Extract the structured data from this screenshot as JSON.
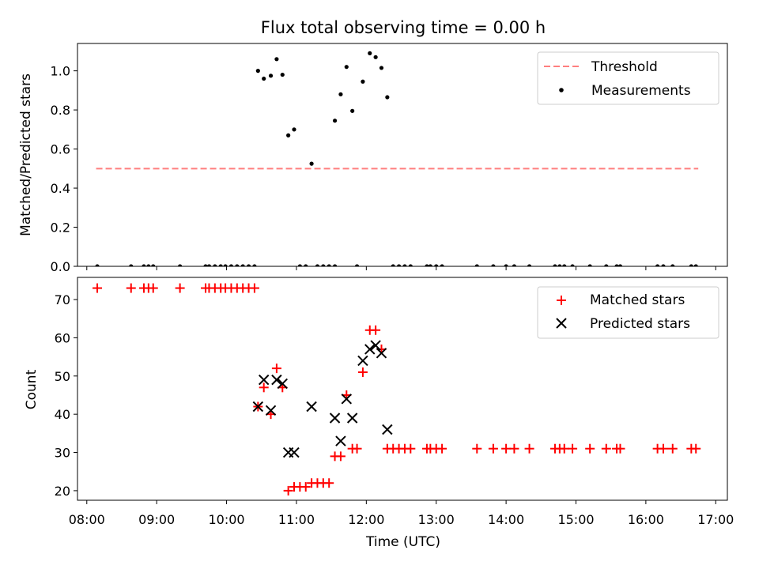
{
  "chart_data": [
    {
      "type": "scatter",
      "title": "Flux total observing time = 0.00 h",
      "xlabel": "",
      "ylabel": "Matched/Predicted stars",
      "ylim": [
        0,
        1.14
      ],
      "yticks": [
        "0.0",
        "0.2",
        "0.4",
        "0.6",
        "0.8",
        "1.0"
      ],
      "xlim": [
        "07:52",
        "17:10"
      ],
      "legend_position": "top-right",
      "series": [
        {
          "name": "Threshold",
          "style": "dashed-line",
          "color": "#ff7f7f",
          "points": [
            {
              "x": "08:08",
              "y": 0.5
            },
            {
              "x": "16:45",
              "y": 0.5
            }
          ]
        },
        {
          "name": "Measurements",
          "style": "dot",
          "color": "#000000",
          "points": [
            {
              "x": "08:09",
              "y": 0
            },
            {
              "x": "08:38",
              "y": 0
            },
            {
              "x": "08:49",
              "y": 0
            },
            {
              "x": "08:53",
              "y": 0
            },
            {
              "x": "08:57",
              "y": 0
            },
            {
              "x": "09:20",
              "y": 0
            },
            {
              "x": "09:42",
              "y": 0
            },
            {
              "x": "09:45",
              "y": 0
            },
            {
              "x": "09:50",
              "y": 0
            },
            {
              "x": "09:55",
              "y": 0
            },
            {
              "x": "09:59",
              "y": 0
            },
            {
              "x": "10:04",
              "y": 0
            },
            {
              "x": "10:09",
              "y": 0
            },
            {
              "x": "10:14",
              "y": 0
            },
            {
              "x": "10:19",
              "y": 0
            },
            {
              "x": "10:24",
              "y": 0
            },
            {
              "x": "10:27",
              "y": 1.0
            },
            {
              "x": "10:32",
              "y": 0.96
            },
            {
              "x": "10:38",
              "y": 0.975
            },
            {
              "x": "10:43",
              "y": 1.06
            },
            {
              "x": "10:48",
              "y": 0.98
            },
            {
              "x": "10:53",
              "y": 0.67
            },
            {
              "x": "10:58",
              "y": 0.7
            },
            {
              "x": "11:03",
              "y": 0
            },
            {
              "x": "11:08",
              "y": 0
            },
            {
              "x": "11:13",
              "y": 0.525
            },
            {
              "x": "11:18",
              "y": 0
            },
            {
              "x": "11:23",
              "y": 0
            },
            {
              "x": "11:28",
              "y": 0
            },
            {
              "x": "11:33",
              "y": 0
            },
            {
              "x": "11:33",
              "y": 0.745
            },
            {
              "x": "11:38",
              "y": 0.88
            },
            {
              "x": "11:43",
              "y": 1.02
            },
            {
              "x": "11:48",
              "y": 0.795
            },
            {
              "x": "11:52",
              "y": 0
            },
            {
              "x": "11:57",
              "y": 0.945
            },
            {
              "x": "12:03",
              "y": 1.09
            },
            {
              "x": "12:08",
              "y": 1.07
            },
            {
              "x": "12:13",
              "y": 1.015
            },
            {
              "x": "12:18",
              "y": 0.865
            },
            {
              "x": "12:23",
              "y": 0
            },
            {
              "x": "12:28",
              "y": 0
            },
            {
              "x": "12:33",
              "y": 0
            },
            {
              "x": "12:38",
              "y": 0
            },
            {
              "x": "12:52",
              "y": 0
            },
            {
              "x": "12:55",
              "y": 0
            },
            {
              "x": "13:00",
              "y": 0
            },
            {
              "x": "13:05",
              "y": 0
            },
            {
              "x": "13:35",
              "y": 0
            },
            {
              "x": "13:49",
              "y": 0
            },
            {
              "x": "14:00",
              "y": 0
            },
            {
              "x": "14:07",
              "y": 0
            },
            {
              "x": "14:20",
              "y": 0
            },
            {
              "x": "14:42",
              "y": 0
            },
            {
              "x": "14:46",
              "y": 0
            },
            {
              "x": "14:50",
              "y": 0
            },
            {
              "x": "14:57",
              "y": 0
            },
            {
              "x": "15:12",
              "y": 0
            },
            {
              "x": "15:26",
              "y": 0
            },
            {
              "x": "15:35",
              "y": 0
            },
            {
              "x": "15:38",
              "y": 0
            },
            {
              "x": "16:10",
              "y": 0
            },
            {
              "x": "16:15",
              "y": 0
            },
            {
              "x": "16:23",
              "y": 0
            },
            {
              "x": "16:39",
              "y": 0
            },
            {
              "x": "16:43",
              "y": 0
            }
          ]
        }
      ]
    },
    {
      "type": "scatter",
      "title": "",
      "xlabel": "Time (UTC)",
      "ylabel": "Count",
      "ylim": [
        17.5,
        75.8
      ],
      "yticks": [
        "20",
        "30",
        "40",
        "50",
        "60",
        "70"
      ],
      "xlim": [
        "07:52",
        "17:10"
      ],
      "xticks": [
        "08:00",
        "09:00",
        "10:00",
        "11:00",
        "12:00",
        "13:00",
        "14:00",
        "15:00",
        "16:00",
        "17:00"
      ],
      "legend_position": "top-right",
      "series": [
        {
          "name": "Matched stars",
          "style": "plus",
          "color": "#ff0000",
          "points": [
            {
              "x": "08:09",
              "y": 73
            },
            {
              "x": "08:38",
              "y": 73
            },
            {
              "x": "08:49",
              "y": 73
            },
            {
              "x": "08:53",
              "y": 73
            },
            {
              "x": "08:57",
              "y": 73
            },
            {
              "x": "09:20",
              "y": 73
            },
            {
              "x": "09:42",
              "y": 73
            },
            {
              "x": "09:45",
              "y": 73
            },
            {
              "x": "09:50",
              "y": 73
            },
            {
              "x": "09:55",
              "y": 73
            },
            {
              "x": "09:59",
              "y": 73
            },
            {
              "x": "10:04",
              "y": 73
            },
            {
              "x": "10:09",
              "y": 73
            },
            {
              "x": "10:14",
              "y": 73
            },
            {
              "x": "10:19",
              "y": 73
            },
            {
              "x": "10:24",
              "y": 73
            },
            {
              "x": "10:27",
              "y": 42
            },
            {
              "x": "10:32",
              "y": 47
            },
            {
              "x": "10:38",
              "y": 40
            },
            {
              "x": "10:43",
              "y": 52
            },
            {
              "x": "10:48",
              "y": 47
            },
            {
              "x": "10:53",
              "y": 20
            },
            {
              "x": "10:58",
              "y": 21
            },
            {
              "x": "11:03",
              "y": 21
            },
            {
              "x": "11:08",
              "y": 21
            },
            {
              "x": "11:13",
              "y": 22
            },
            {
              "x": "11:18",
              "y": 22
            },
            {
              "x": "11:23",
              "y": 22
            },
            {
              "x": "11:28",
              "y": 22
            },
            {
              "x": "11:33",
              "y": 29
            },
            {
              "x": "11:38",
              "y": 29
            },
            {
              "x": "11:43",
              "y": 45
            },
            {
              "x": "11:48",
              "y": 31
            },
            {
              "x": "11:52",
              "y": 31
            },
            {
              "x": "11:57",
              "y": 51
            },
            {
              "x": "12:03",
              "y": 62
            },
            {
              "x": "12:08",
              "y": 62
            },
            {
              "x": "12:13",
              "y": 57
            },
            {
              "x": "12:18",
              "y": 31
            },
            {
              "x": "12:23",
              "y": 31
            },
            {
              "x": "12:28",
              "y": 31
            },
            {
              "x": "12:33",
              "y": 31
            },
            {
              "x": "12:38",
              "y": 31
            },
            {
              "x": "12:52",
              "y": 31
            },
            {
              "x": "12:55",
              "y": 31
            },
            {
              "x": "13:00",
              "y": 31
            },
            {
              "x": "13:05",
              "y": 31
            },
            {
              "x": "13:35",
              "y": 31
            },
            {
              "x": "13:49",
              "y": 31
            },
            {
              "x": "14:00",
              "y": 31
            },
            {
              "x": "14:07",
              "y": 31
            },
            {
              "x": "14:20",
              "y": 31
            },
            {
              "x": "14:42",
              "y": 31
            },
            {
              "x": "14:46",
              "y": 31
            },
            {
              "x": "14:50",
              "y": 31
            },
            {
              "x": "14:57",
              "y": 31
            },
            {
              "x": "15:12",
              "y": 31
            },
            {
              "x": "15:26",
              "y": 31
            },
            {
              "x": "15:35",
              "y": 31
            },
            {
              "x": "15:38",
              "y": 31
            },
            {
              "x": "16:10",
              "y": 31
            },
            {
              "x": "16:15",
              "y": 31
            },
            {
              "x": "16:23",
              "y": 31
            },
            {
              "x": "16:39",
              "y": 31
            },
            {
              "x": "16:43",
              "y": 31
            }
          ]
        },
        {
          "name": "Predicted stars",
          "style": "x",
          "color": "#000000",
          "points": [
            {
              "x": "10:27",
              "y": 42
            },
            {
              "x": "10:32",
              "y": 49
            },
            {
              "x": "10:38",
              "y": 41
            },
            {
              "x": "10:43",
              "y": 49
            },
            {
              "x": "10:48",
              "y": 48
            },
            {
              "x": "10:53",
              "y": 30
            },
            {
              "x": "10:58",
              "y": 30
            },
            {
              "x": "11:13",
              "y": 42
            },
            {
              "x": "11:33",
              "y": 39
            },
            {
              "x": "11:38",
              "y": 33
            },
            {
              "x": "11:43",
              "y": 44
            },
            {
              "x": "11:48",
              "y": 39
            },
            {
              "x": "11:57",
              "y": 54
            },
            {
              "x": "12:03",
              "y": 57
            },
            {
              "x": "12:08",
              "y": 58
            },
            {
              "x": "12:13",
              "y": 56
            },
            {
              "x": "12:18",
              "y": 36
            }
          ]
        }
      ]
    }
  ]
}
